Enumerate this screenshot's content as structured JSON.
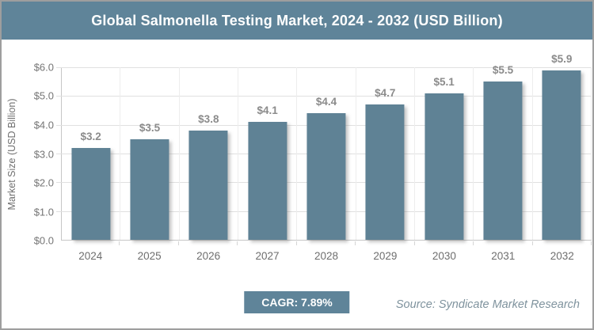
{
  "window": {
    "border_color": "#9e9e9e",
    "background": "#ffffff"
  },
  "header": {
    "title": "Global Salmonella Testing Market, 2024 - 2032 (USD Billion)",
    "background": "#5f8499",
    "text_color": "#ffffff"
  },
  "chart_data": {
    "type": "bar",
    "title": "Global Salmonella Testing Market, 2024 - 2032 (USD Billion)",
    "categories": [
      "2024",
      "2025",
      "2026",
      "2027",
      "2028",
      "2029",
      "2030",
      "2031",
      "2032"
    ],
    "values": [
      3.2,
      3.5,
      3.8,
      4.1,
      4.4,
      4.7,
      5.1,
      5.5,
      5.9
    ],
    "value_labels": [
      "$3.2",
      "$3.5",
      "$3.8",
      "$4.1",
      "$4.4",
      "$4.7",
      "$5.1",
      "$5.5",
      "$5.9"
    ],
    "xlabel": "",
    "ylabel": "Market Size (USD Billion)",
    "ylim": [
      0,
      6
    ],
    "ytick_step": 1,
    "ytick_labels": [
      "$0.0",
      "$1.0",
      "$2.0",
      "$3.0",
      "$4.0",
      "$5.0",
      "$6.0"
    ],
    "grid": true,
    "legend_position": "none",
    "bar_color": "#5f8295"
  },
  "footer": {
    "cagr_label": "CAGR: 7.89%",
    "cagr_background": "#5f8499",
    "source": "Source: Syndicate Market Research"
  }
}
